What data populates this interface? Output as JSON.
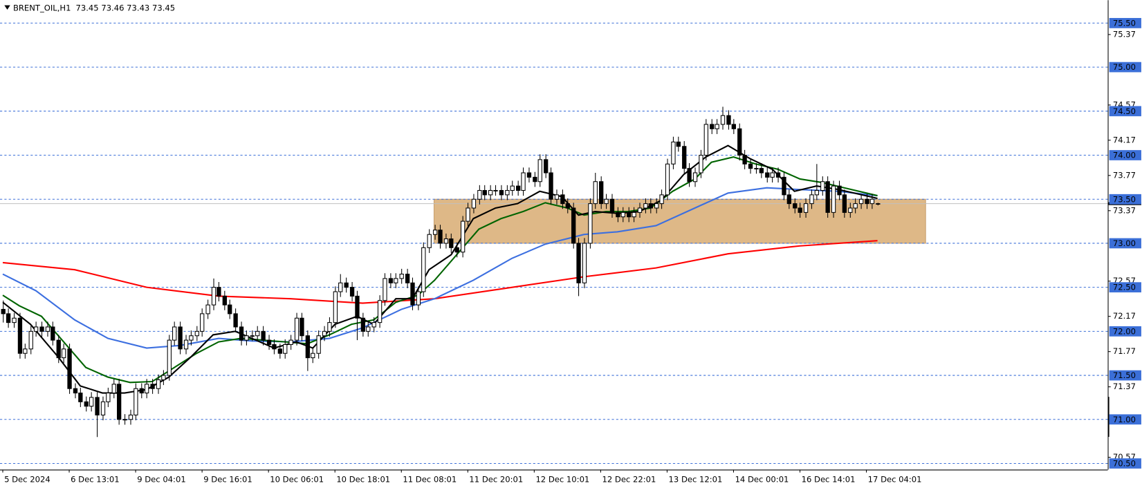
{
  "chart_data": {
    "type": "candlestick",
    "title": "BRENT_OIL,H1",
    "quote": "73.45 73.46 73.43 73.45",
    "xlim": [
      -0.5,
      199.6
    ],
    "ylim": [
      70.43,
      75.76
    ],
    "yticks": [
      75.37,
      74.57,
      74.17,
      73.77,
      73.37,
      72.57,
      72.17,
      71.77,
      71.37,
      70.57
    ],
    "xticks": [
      {
        "value": 0,
        "label": "5 Dec 2024"
      },
      {
        "value": 12,
        "label": "6 Dec 13:01"
      },
      {
        "value": 24,
        "label": "9 Dec 04:01"
      },
      {
        "value": 36,
        "label": "9 Dec 16:01"
      },
      {
        "value": 48,
        "label": "10 Dec 06:01"
      },
      {
        "value": 60,
        "label": "10 Dec 18:01"
      },
      {
        "value": 72,
        "label": "11 Dec 08:01"
      },
      {
        "value": 84,
        "label": "11 Dec 20:01"
      },
      {
        "value": 96,
        "label": "12 Dec 10:01"
      },
      {
        "value": 108,
        "label": "12 Dec 22:01"
      },
      {
        "value": 120,
        "label": "13 Dec 12:01"
      },
      {
        "value": 132,
        "label": "14 Dec 00:01"
      },
      {
        "value": 144,
        "label": "16 Dec 14:01"
      },
      {
        "value": 156,
        "label": "17 Dec 04:01"
      }
    ],
    "levels": [
      {
        "value": 75.5,
        "label": "75.50"
      },
      {
        "value": 75.0,
        "label": "75.00"
      },
      {
        "value": 74.5,
        "label": "74.50"
      },
      {
        "value": 74.0,
        "label": "74.00"
      },
      {
        "value": 73.5,
        "label": "73.50"
      },
      {
        "value": 73.0,
        "label": "73.00"
      },
      {
        "value": 72.5,
        "label": "72.50"
      },
      {
        "value": 72.0,
        "label": "72.00"
      },
      {
        "value": 71.5,
        "label": "71.50"
      },
      {
        "value": 71.0,
        "label": "71.00"
      },
      {
        "value": 70.5,
        "label": "70.50"
      }
    ],
    "level_color": "#3b6fd8",
    "price_line": 73.45,
    "zone": {
      "x": [
        77.9,
        166.7
      ],
      "y": [
        73.0,
        73.5
      ],
      "color": "#deb887"
    },
    "candles": [
      [
        72.25,
        72.35,
        72.1,
        72.2
      ],
      [
        72.2,
        72.26,
        72.04,
        72.1
      ],
      [
        72.1,
        72.21,
        72.04,
        72.15
      ],
      [
        72.15,
        72.21,
        71.69,
        71.75
      ],
      [
        71.75,
        71.86,
        71.69,
        71.8
      ],
      [
        71.8,
        72.06,
        71.74,
        72.0
      ],
      [
        72.0,
        72.11,
        71.94,
        72.05
      ],
      [
        72.05,
        72.11,
        71.94,
        72.0
      ],
      [
        72.0,
        72.11,
        71.94,
        72.05
      ],
      [
        72.05,
        72.11,
        71.84,
        71.9
      ],
      [
        71.9,
        71.96,
        71.64,
        71.7
      ],
      [
        71.7,
        71.86,
        71.64,
        71.8
      ],
      [
        71.8,
        71.86,
        71.29,
        71.35
      ],
      [
        71.35,
        71.41,
        71.24,
        71.3
      ],
      [
        71.3,
        71.36,
        71.14,
        71.2
      ],
      [
        71.2,
        71.26,
        71.09,
        71.15
      ],
      [
        71.15,
        71.31,
        71.09,
        71.25
      ],
      [
        71.25,
        71.31,
        70.8,
        71.05
      ],
      [
        71.05,
        71.26,
        70.99,
        71.2
      ],
      [
        71.2,
        71.36,
        71.14,
        71.3
      ],
      [
        71.3,
        71.46,
        71.24,
        71.4
      ],
      [
        71.4,
        71.46,
        70.94,
        71.0
      ],
      [
        71.0,
        71.06,
        70.94,
        71.0
      ],
      [
        71.0,
        71.11,
        70.94,
        71.05
      ],
      [
        71.05,
        71.41,
        70.99,
        71.35
      ],
      [
        71.35,
        71.41,
        71.24,
        71.3
      ],
      [
        71.3,
        71.46,
        71.24,
        71.4
      ],
      [
        71.4,
        71.46,
        71.29,
        71.35
      ],
      [
        71.35,
        71.51,
        71.29,
        71.45
      ],
      [
        71.45,
        71.56,
        71.39,
        71.5
      ],
      [
        71.5,
        71.96,
        71.44,
        71.9
      ],
      [
        71.9,
        72.11,
        71.84,
        72.05
      ],
      [
        72.05,
        72.11,
        71.74,
        71.8
      ],
      [
        71.8,
        71.96,
        71.74,
        71.9
      ],
      [
        71.9,
        72.01,
        71.84,
        71.95
      ],
      [
        71.95,
        72.06,
        71.89,
        72.0
      ],
      [
        72.0,
        72.26,
        71.94,
        72.2
      ],
      [
        72.2,
        72.36,
        72.14,
        72.3
      ],
      [
        72.3,
        72.6,
        72.24,
        72.5
      ],
      [
        72.5,
        72.56,
        72.34,
        72.4
      ],
      [
        72.4,
        72.46,
        72.24,
        72.3
      ],
      [
        72.3,
        72.36,
        72.14,
        72.2
      ],
      [
        72.2,
        72.26,
        71.99,
        72.05
      ],
      [
        72.05,
        72.11,
        71.84,
        71.9
      ],
      [
        71.9,
        72.01,
        71.84,
        71.95
      ],
      [
        71.95,
        72.01,
        71.89,
        71.95
      ],
      [
        71.95,
        72.06,
        71.89,
        72.0
      ],
      [
        72.0,
        72.06,
        71.84,
        71.9
      ],
      [
        71.9,
        71.96,
        71.79,
        71.85
      ],
      [
        71.85,
        71.91,
        71.74,
        71.8
      ],
      [
        71.8,
        71.86,
        71.69,
        71.75
      ],
      [
        71.75,
        71.91,
        71.69,
        71.85
      ],
      [
        71.85,
        71.96,
        71.79,
        71.9
      ],
      [
        71.9,
        72.21,
        71.84,
        72.15
      ],
      [
        72.15,
        72.21,
        71.89,
        71.95
      ],
      [
        71.95,
        72.01,
        71.55,
        71.7
      ],
      [
        71.7,
        71.81,
        71.64,
        71.75
      ],
      [
        71.75,
        72.01,
        71.69,
        71.95
      ],
      [
        71.95,
        72.06,
        71.89,
        72.0
      ],
      [
        72.0,
        72.16,
        71.94,
        72.1
      ],
      [
        72.1,
        72.51,
        72.04,
        72.45
      ],
      [
        72.45,
        72.65,
        72.39,
        72.55
      ],
      [
        72.55,
        72.61,
        72.44,
        72.5
      ],
      [
        72.5,
        72.56,
        72.34,
        72.4
      ],
      [
        72.4,
        72.46,
        71.9,
        72.15
      ],
      [
        72.15,
        72.21,
        71.94,
        72.0
      ],
      [
        72.0,
        72.11,
        71.94,
        72.05
      ],
      [
        72.05,
        72.16,
        71.99,
        72.1
      ],
      [
        72.1,
        72.41,
        72.04,
        72.35
      ],
      [
        72.35,
        72.66,
        72.29,
        72.6
      ],
      [
        72.6,
        72.66,
        72.49,
        72.55
      ],
      [
        72.55,
        72.66,
        72.49,
        72.6
      ],
      [
        72.6,
        72.71,
        72.54,
        72.65
      ],
      [
        72.65,
        72.71,
        72.49,
        72.55
      ],
      [
        72.55,
        72.61,
        72.24,
        72.3
      ],
      [
        72.3,
        72.51,
        72.24,
        72.45
      ],
      [
        72.45,
        73.01,
        72.39,
        72.95
      ],
      [
        72.95,
        73.16,
        72.89,
        73.1
      ],
      [
        73.1,
        73.21,
        73.04,
        73.15
      ],
      [
        73.15,
        73.21,
        72.94,
        73.0
      ],
      [
        73.0,
        73.11,
        72.94,
        73.05
      ],
      [
        73.05,
        73.11,
        72.89,
        72.95
      ],
      [
        72.95,
        73.01,
        72.84,
        72.9
      ],
      [
        72.9,
        73.31,
        72.84,
        73.25
      ],
      [
        73.25,
        73.46,
        73.19,
        73.4
      ],
      [
        73.4,
        73.56,
        73.34,
        73.5
      ],
      [
        73.5,
        73.66,
        73.44,
        73.6
      ],
      [
        73.6,
        73.66,
        73.49,
        73.55
      ],
      [
        73.55,
        73.66,
        73.49,
        73.6
      ],
      [
        73.6,
        73.66,
        73.54,
        73.6
      ],
      [
        73.6,
        73.66,
        73.49,
        73.55
      ],
      [
        73.55,
        73.66,
        73.49,
        73.6
      ],
      [
        73.6,
        73.71,
        73.54,
        73.65
      ],
      [
        73.65,
        73.71,
        73.54,
        73.6
      ],
      [
        73.6,
        73.86,
        73.54,
        73.8
      ],
      [
        73.8,
        73.86,
        73.69,
        73.75
      ],
      [
        73.75,
        73.81,
        73.64,
        73.7
      ],
      [
        73.7,
        74.01,
        73.64,
        73.95
      ],
      [
        73.95,
        74.01,
        73.74,
        73.8
      ],
      [
        73.8,
        73.86,
        73.44,
        73.5
      ],
      [
        73.5,
        73.61,
        73.44,
        73.55
      ],
      [
        73.55,
        73.61,
        73.39,
        73.45
      ],
      [
        73.45,
        73.51,
        73.34,
        73.4
      ],
      [
        73.4,
        73.46,
        72.94,
        73.0
      ],
      [
        73.0,
        73.06,
        72.4,
        72.55
      ],
      [
        72.55,
        73.06,
        72.49,
        73.0
      ],
      [
        73.0,
        73.51,
        72.94,
        73.45
      ],
      [
        73.45,
        73.8,
        73.39,
        73.7
      ],
      [
        73.7,
        73.76,
        73.39,
        73.45
      ],
      [
        73.45,
        73.56,
        73.39,
        73.5
      ],
      [
        73.5,
        73.56,
        73.29,
        73.35
      ],
      [
        73.35,
        73.41,
        73.24,
        73.3
      ],
      [
        73.3,
        73.41,
        73.24,
        73.35
      ],
      [
        73.35,
        73.41,
        73.24,
        73.3
      ],
      [
        73.3,
        73.41,
        73.24,
        73.35
      ],
      [
        73.35,
        73.46,
        73.29,
        73.4
      ],
      [
        73.4,
        73.51,
        73.34,
        73.45
      ],
      [
        73.45,
        73.51,
        73.34,
        73.4
      ],
      [
        73.4,
        73.51,
        73.34,
        73.45
      ],
      [
        73.45,
        73.61,
        73.39,
        73.55
      ],
      [
        73.55,
        73.96,
        73.49,
        73.9
      ],
      [
        73.9,
        74.21,
        73.84,
        74.15
      ],
      [
        74.15,
        74.21,
        74.04,
        74.1
      ],
      [
        74.1,
        74.16,
        73.79,
        73.85
      ],
      [
        73.85,
        73.91,
        73.64,
        73.7
      ],
      [
        73.7,
        73.86,
        73.64,
        73.8
      ],
      [
        73.8,
        74.06,
        73.74,
        74.0
      ],
      [
        74.0,
        74.41,
        73.94,
        74.35
      ],
      [
        74.35,
        74.41,
        74.24,
        74.3
      ],
      [
        74.3,
        74.41,
        74.24,
        74.35
      ],
      [
        74.35,
        74.55,
        74.29,
        74.45
      ],
      [
        74.45,
        74.51,
        74.29,
        74.35
      ],
      [
        74.35,
        74.41,
        74.24,
        74.3
      ],
      [
        74.3,
        74.36,
        73.94,
        74.0
      ],
      [
        74.0,
        74.06,
        73.84,
        73.9
      ],
      [
        73.9,
        73.96,
        73.79,
        73.85
      ],
      [
        73.85,
        73.91,
        73.79,
        73.85
      ],
      [
        73.85,
        73.91,
        73.74,
        73.8
      ],
      [
        73.8,
        73.86,
        73.69,
        73.75
      ],
      [
        73.75,
        73.86,
        73.69,
        73.8
      ],
      [
        73.8,
        73.86,
        73.69,
        73.75
      ],
      [
        73.75,
        73.81,
        73.49,
        73.55
      ],
      [
        73.55,
        73.61,
        73.39,
        73.45
      ],
      [
        73.45,
        73.51,
        73.34,
        73.4
      ],
      [
        73.4,
        73.46,
        73.29,
        73.35
      ],
      [
        73.35,
        73.51,
        73.29,
        73.45
      ],
      [
        73.45,
        73.61,
        73.39,
        73.55
      ],
      [
        73.55,
        73.9,
        73.49,
        73.6
      ],
      [
        73.6,
        73.76,
        73.54,
        73.7
      ],
      [
        73.7,
        73.76,
        73.29,
        73.35
      ],
      [
        73.35,
        73.71,
        73.29,
        73.65
      ],
      [
        73.65,
        73.71,
        73.49,
        73.55
      ],
      [
        73.55,
        73.61,
        73.29,
        73.35
      ],
      [
        73.35,
        73.46,
        73.29,
        73.4
      ],
      [
        73.4,
        73.51,
        73.34,
        73.45
      ],
      [
        73.45,
        73.56,
        73.39,
        73.5
      ],
      [
        73.5,
        73.56,
        73.39,
        73.45
      ],
      [
        73.45,
        73.56,
        73.39,
        73.5
      ],
      [
        73.45,
        73.46,
        73.43,
        73.45
      ]
    ],
    "series": [
      {
        "color": "#ff0000",
        "x": [
          0,
          13,
          26,
          39,
          52,
          65,
          78,
          92,
          105,
          118,
          131,
          144,
          158
        ],
        "values": [
          72.78,
          72.7,
          72.5,
          72.4,
          72.37,
          72.32,
          72.37,
          72.5,
          72.62,
          72.72,
          72.88,
          72.97,
          73.03
        ]
      },
      {
        "color": "#3c6fe0",
        "x": [
          0,
          6,
          13,
          19,
          26,
          32,
          39,
          45,
          52,
          59,
          65,
          72,
          78,
          85,
          92,
          98,
          105,
          111,
          118,
          125,
          131,
          138,
          144,
          151,
          158
        ],
        "values": [
          72.65,
          72.46,
          72.13,
          71.92,
          71.81,
          71.84,
          71.92,
          71.89,
          71.88,
          71.92,
          72.04,
          72.25,
          72.37,
          72.58,
          72.83,
          72.99,
          73.1,
          73.13,
          73.2,
          73.4,
          73.57,
          73.63,
          73.61,
          73.59,
          73.54
        ]
      },
      {
        "color": "#006400",
        "x": [
          0,
          3,
          7,
          11,
          15,
          19,
          23,
          27,
          31,
          35,
          39,
          43,
          47,
          51,
          55,
          59,
          63,
          67,
          71,
          75,
          78,
          82,
          86,
          90,
          94,
          98,
          102,
          105,
          109,
          113,
          117,
          121,
          125,
          128,
          132,
          136,
          140,
          144,
          148,
          152,
          158
        ],
        "values": [
          72.41,
          72.29,
          72.17,
          71.88,
          71.59,
          71.48,
          71.42,
          71.43,
          71.59,
          71.75,
          71.88,
          71.92,
          71.9,
          71.88,
          71.86,
          71.96,
          72.08,
          72.13,
          72.33,
          72.41,
          72.58,
          72.87,
          73.16,
          73.28,
          73.36,
          73.46,
          73.4,
          73.32,
          73.36,
          73.36,
          73.4,
          73.59,
          73.73,
          73.92,
          73.98,
          73.9,
          73.84,
          73.73,
          73.69,
          73.63,
          73.54
        ]
      },
      {
        "color": "#000000",
        "x": [
          0,
          5,
          10,
          14,
          18,
          22,
          26,
          30,
          34,
          38,
          42,
          45,
          49,
          53,
          56,
          60,
          64,
          67,
          71,
          74,
          77,
          81,
          85,
          89,
          93,
          97,
          101,
          104,
          107,
          111,
          115,
          119,
          123,
          127,
          131,
          135,
          139,
          143,
          147,
          151,
          158
        ],
        "values": [
          72.33,
          72.08,
          71.71,
          71.38,
          71.3,
          71.3,
          71.34,
          71.48,
          71.71,
          71.96,
          72.0,
          71.92,
          71.81,
          71.88,
          71.81,
          72.08,
          72.17,
          72.08,
          72.37,
          72.37,
          72.7,
          72.87,
          73.28,
          73.4,
          73.45,
          73.59,
          73.53,
          73.32,
          73.36,
          73.34,
          73.36,
          73.49,
          73.78,
          73.98,
          74.11,
          73.96,
          73.84,
          73.59,
          73.65,
          73.61,
          73.51
        ]
      }
    ]
  }
}
